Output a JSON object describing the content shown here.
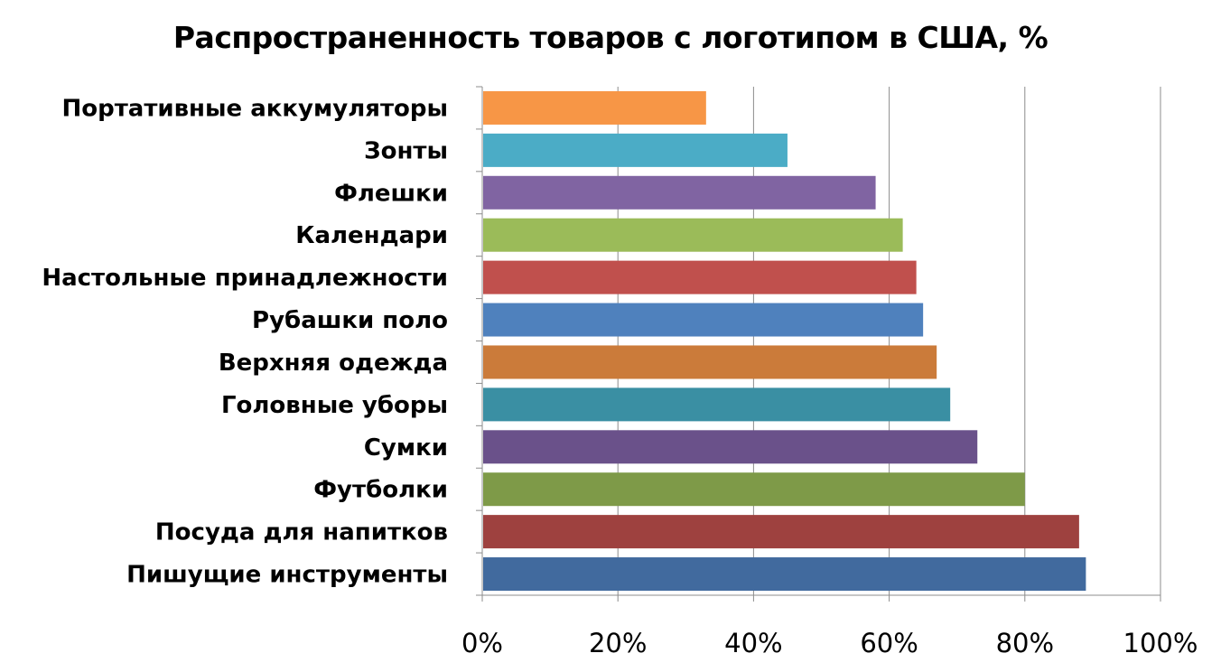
{
  "chart_data": {
    "type": "bar",
    "orientation": "horizontal",
    "title": "Распространенность товаров с логотипом в США, %",
    "xlabel": "",
    "ylabel": "",
    "xlim": [
      0,
      100
    ],
    "x_ticks": [
      0,
      20,
      40,
      60,
      80,
      100
    ],
    "x_tick_labels": [
      "0%",
      "20%",
      "40%",
      "60%",
      "80%",
      "100%"
    ],
    "grid": true,
    "legend": "none",
    "categories": [
      "Портативные аккумуляторы",
      "Зонты",
      "Флешки",
      "Календари",
      "Настольные принадлежности",
      "Рубашки поло",
      "Верхняя одежда",
      "Головные уборы",
      "Сумки",
      "Футболки",
      "Посуда для напитков",
      "Пишущие инструменты"
    ],
    "values": [
      33,
      45,
      58,
      62,
      64,
      65,
      67,
      69,
      73,
      80,
      88,
      89
    ],
    "colors": [
      "#F79646",
      "#4BACC6",
      "#8064A2",
      "#9BBB59",
      "#C0504D",
      "#4F81BD",
      "#CB7B3A",
      "#3A8FA3",
      "#6A518A",
      "#7E9A48",
      "#9E413F",
      "#416A9E"
    ]
  }
}
